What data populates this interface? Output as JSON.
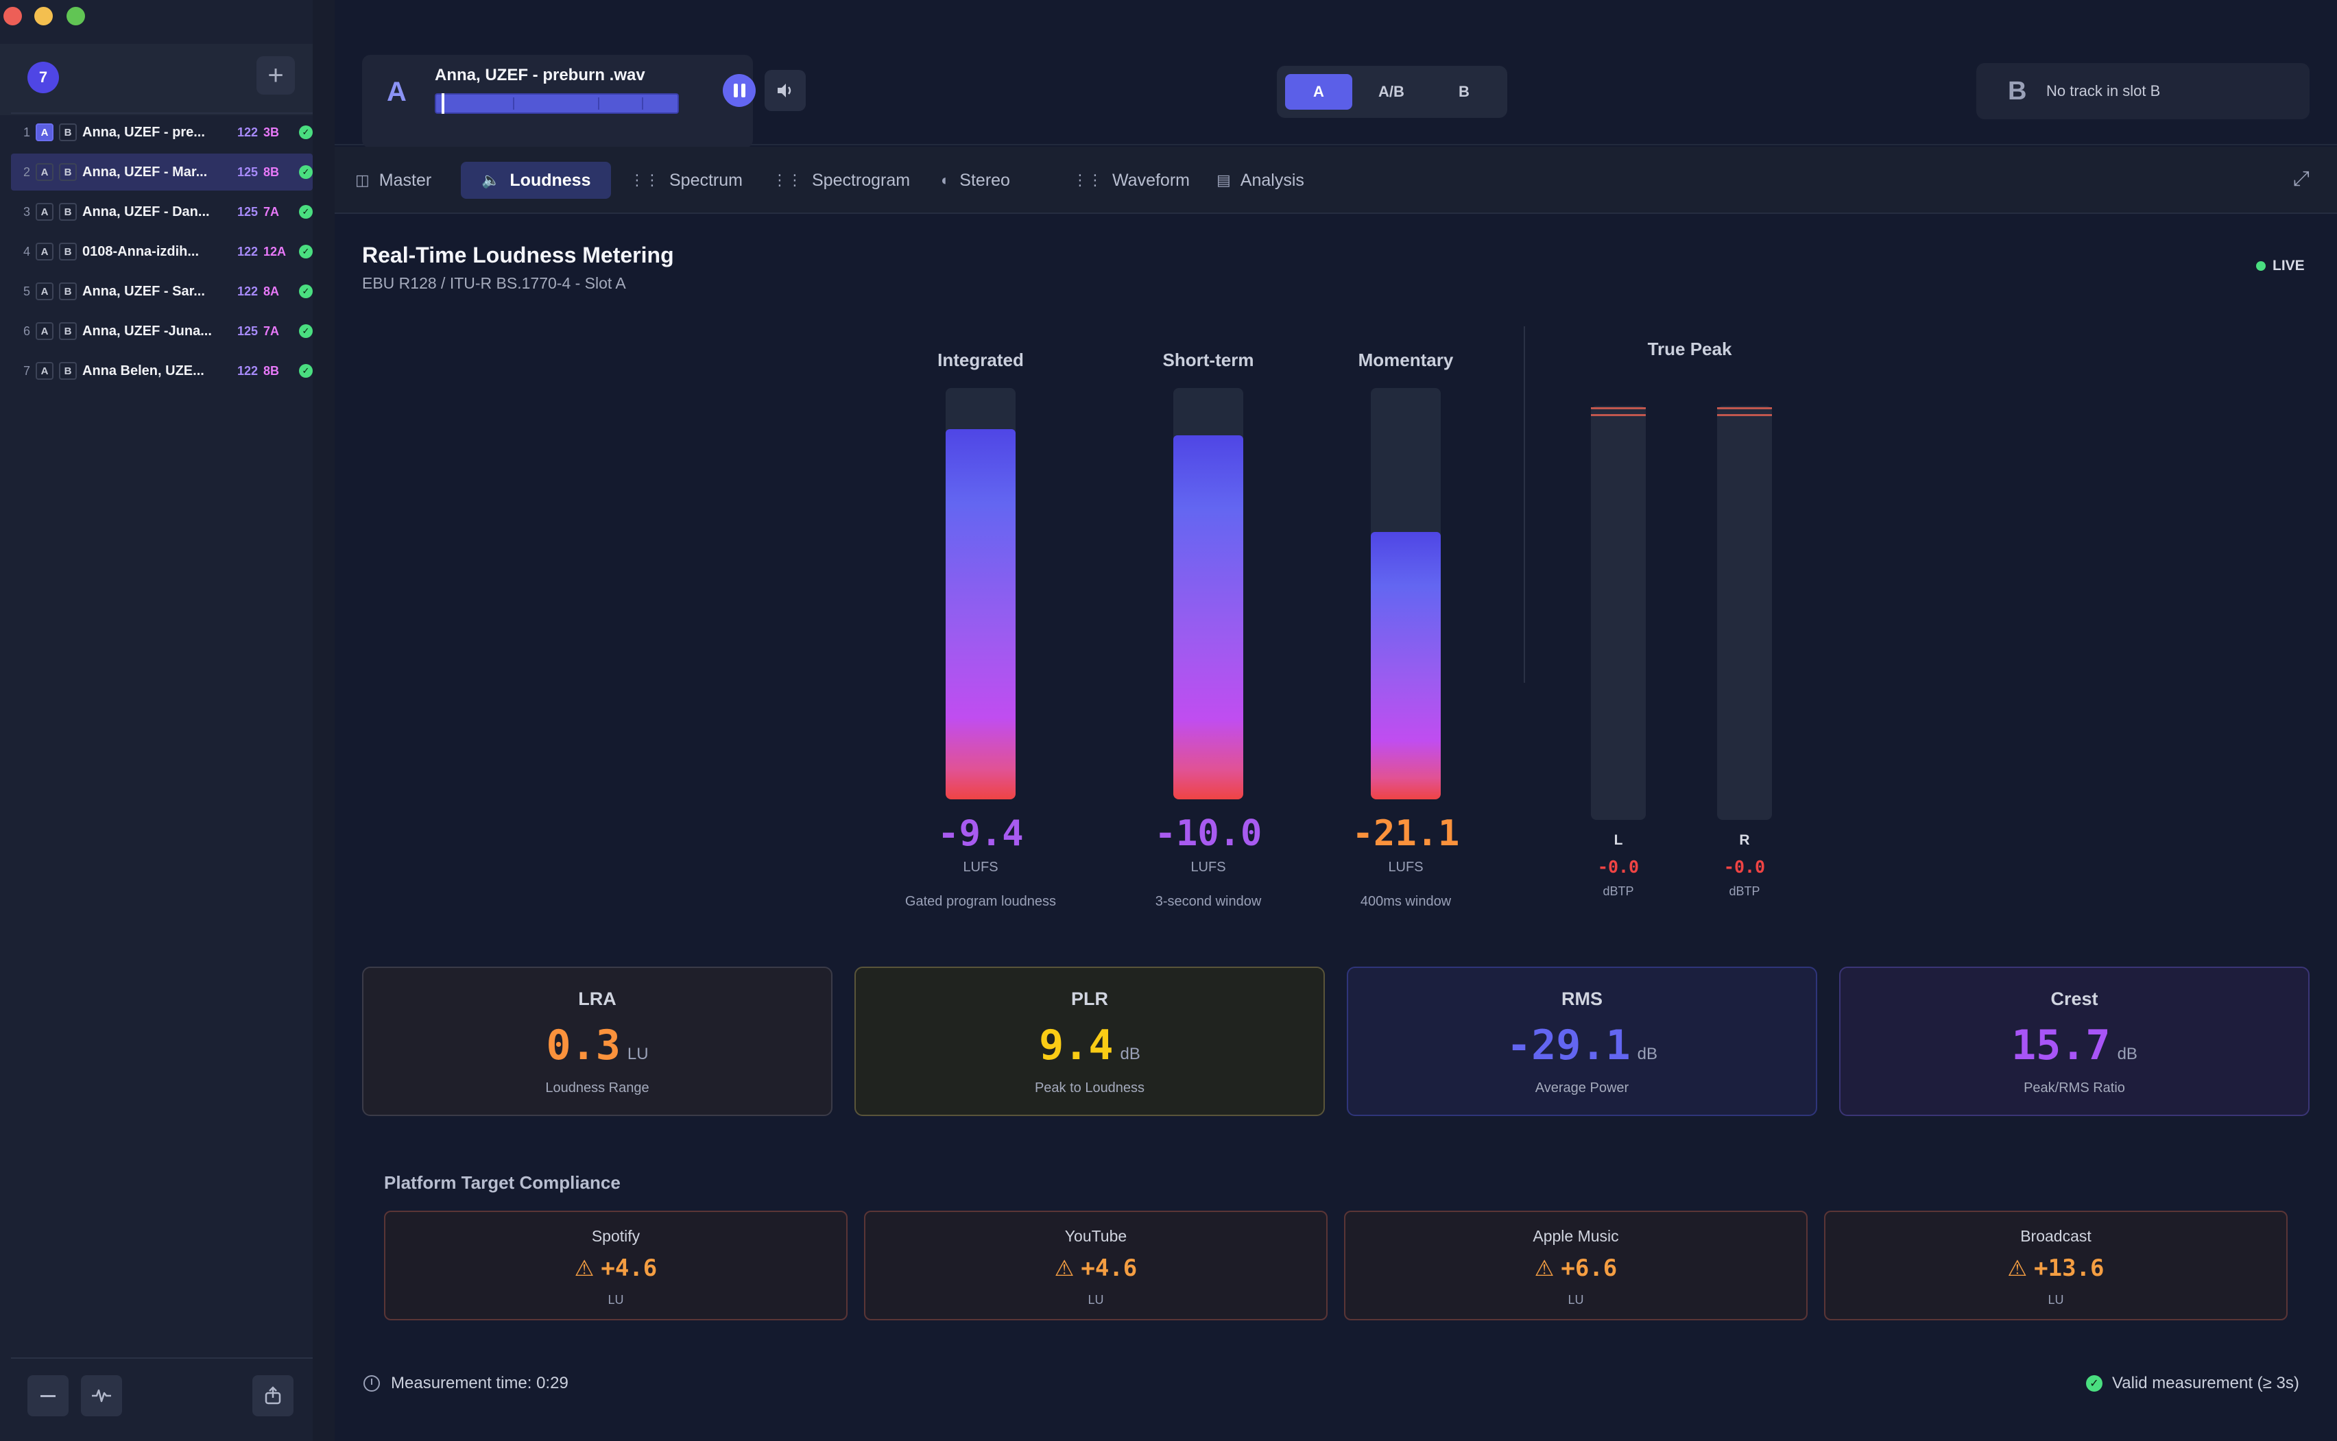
{
  "sidebar": {
    "track_count": "7",
    "add_label": "+",
    "tracks": [
      {
        "num": "1",
        "slot_a": "A",
        "slot_b": "B",
        "name": "Anna, UZEF - pre...",
        "bpm": "122",
        "key": "3B",
        "active_slot": "A",
        "selected": false
      },
      {
        "num": "2",
        "slot_a": "A",
        "slot_b": "B",
        "name": "Anna, UZEF - Mar...",
        "bpm": "125",
        "key": "8B",
        "active_slot": "",
        "selected": true
      },
      {
        "num": "3",
        "slot_a": "A",
        "slot_b": "B",
        "name": "Anna, UZEF - Dan...",
        "bpm": "125",
        "key": "7A",
        "active_slot": "",
        "selected": false
      },
      {
        "num": "4",
        "slot_a": "A",
        "slot_b": "B",
        "name": "0108-Anna-izdih...",
        "bpm": "122",
        "key": "12A",
        "active_slot": "",
        "selected": false
      },
      {
        "num": "5",
        "slot_a": "A",
        "slot_b": "B",
        "name": "Anna, UZEF - Sar...",
        "bpm": "122",
        "key": "8A",
        "active_slot": "",
        "selected": false
      },
      {
        "num": "6",
        "slot_a": "A",
        "slot_b": "B",
        "name": "Anna, UZEF -Juna...",
        "bpm": "125",
        "key": "7A",
        "active_slot": "",
        "selected": false
      },
      {
        "num": "7",
        "slot_a": "A",
        "slot_b": "B",
        "name": "Anna Belen, UZE...",
        "bpm": "122",
        "key": "8B",
        "active_slot": "",
        "selected": false
      }
    ],
    "footer_icons": [
      "minus-icon",
      "pulse-icon",
      "export-icon"
    ]
  },
  "player": {
    "slot": "A",
    "title": "Anna, UZEF - preburn .wav",
    "progress": 0.02,
    "volume_icon": "speaker-icon"
  },
  "ab_toggle": {
    "options": [
      "A",
      "A/B",
      "B"
    ],
    "active": "A"
  },
  "slot_b": {
    "letter": "B",
    "text": "No track in slot B"
  },
  "tabs": [
    {
      "label": "Master",
      "icon": "master-icon",
      "active": false
    },
    {
      "label": "Loudness",
      "icon": "speaker-icon",
      "active": true
    },
    {
      "label": "Spectrum",
      "icon": "spectrum-icon",
      "active": false
    },
    {
      "label": "Spectrogram",
      "icon": "spectrogram-icon",
      "active": false
    },
    {
      "label": "Stereo",
      "icon": "stereo-icon",
      "active": false
    },
    {
      "label": "Waveform",
      "icon": "waveform-icon",
      "active": false
    },
    {
      "label": "Analysis",
      "icon": "analysis-icon",
      "active": false
    }
  ],
  "page": {
    "title": "Real-Time Loudness Metering",
    "subtitle": "EBU R128 / ITU-R BS.1770-4 - Slot A",
    "live_label": "LIVE"
  },
  "meters": [
    {
      "label": "Integrated",
      "value": "-9.4",
      "unit": "LUFS",
      "desc": "Gated program loudness",
      "level": 0.9,
      "color": "#a85bf0"
    },
    {
      "label": "Short-term",
      "value": "-10.0",
      "unit": "LUFS",
      "desc": "3-second window",
      "level": 0.885,
      "color": "#a85bf0"
    },
    {
      "label": "Momentary",
      "value": "-21.1",
      "unit": "LUFS",
      "desc": "400ms window",
      "level": 0.65,
      "color": "#fb923c"
    }
  ],
  "true_peak": {
    "title": "True Peak",
    "channels": [
      {
        "ch": "L",
        "value": "-0.0",
        "unit": "dBTP"
      },
      {
        "ch": "R",
        "value": "-0.0",
        "unit": "dBTP"
      }
    ]
  },
  "stats": [
    {
      "title": "LRA",
      "value": "0.3",
      "unit": "LU",
      "desc": "Loudness Range",
      "color": "#fb923c",
      "bg": "#1f1f2a",
      "border": "#3b3b48"
    },
    {
      "title": "PLR",
      "value": "9.4",
      "unit": "dB",
      "desc": "Peak to Loudness",
      "color": "#facc15",
      "bg": "#20231f",
      "border": "#5a553a"
    },
    {
      "title": "RMS",
      "value": "-29.1",
      "unit": "dB",
      "desc": "Average Power",
      "color": "#6366f1",
      "bg": "#1b1f3e",
      "border": "#2f357a"
    },
    {
      "title": "Crest",
      "value": "15.7",
      "unit": "dB",
      "desc": "Peak/RMS Ratio",
      "color": "#a855f7",
      "bg": "#1e1d3c",
      "border": "#3b3576"
    }
  ],
  "compliance": {
    "title": "Platform Target Compliance",
    "platforms": [
      {
        "name": "Spotify",
        "value": "+4.6",
        "unit": "LU"
      },
      {
        "name": "YouTube",
        "value": "+4.6",
        "unit": "LU"
      },
      {
        "name": "Apple Music",
        "value": "+6.6",
        "unit": "LU"
      },
      {
        "name": "Broadcast",
        "value": "+13.6",
        "unit": "LU"
      }
    ]
  },
  "footer": {
    "measurement_time": "Measurement time: 0:29",
    "valid": "Valid measurement (≥ 3s)"
  }
}
